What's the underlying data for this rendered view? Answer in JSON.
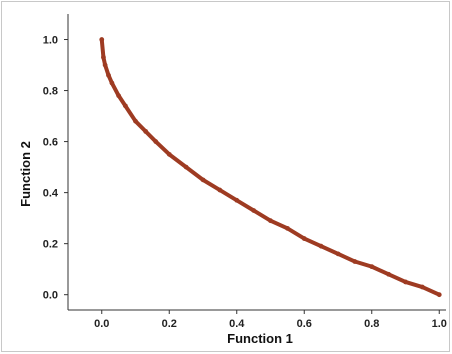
{
  "chart_data": {
    "type": "scatter",
    "title": "",
    "xlabel": "Function 1",
    "ylabel": "Function 2",
    "xlim": [
      -0.1,
      1.02
    ],
    "ylim": [
      -0.06,
      1.1
    ],
    "x_ticks": [
      "0.0",
      "0.2",
      "0.4",
      "0.6",
      "0.8",
      "1.0"
    ],
    "y_ticks": [
      "0.0",
      "0.2",
      "0.4",
      "0.6",
      "0.8",
      "1.0"
    ],
    "grid": false,
    "legend": "none",
    "series": [
      {
        "marker_color": "#9e3b22",
        "x": [
          0.0,
          0.005,
          0.01,
          0.02,
          0.03,
          0.05,
          0.07,
          0.1,
          0.13,
          0.16,
          0.2,
          0.25,
          0.3,
          0.35,
          0.4,
          0.45,
          0.5,
          0.55,
          0.6,
          0.65,
          0.7,
          0.75,
          0.8,
          0.85,
          0.9,
          0.95,
          1.0
        ],
        "y": [
          1.0,
          0.93,
          0.9,
          0.86,
          0.83,
          0.78,
          0.74,
          0.68,
          0.64,
          0.6,
          0.55,
          0.5,
          0.45,
          0.41,
          0.37,
          0.33,
          0.29,
          0.26,
          0.22,
          0.19,
          0.16,
          0.13,
          0.11,
          0.08,
          0.05,
          0.03,
          0.0
        ]
      }
    ]
  }
}
